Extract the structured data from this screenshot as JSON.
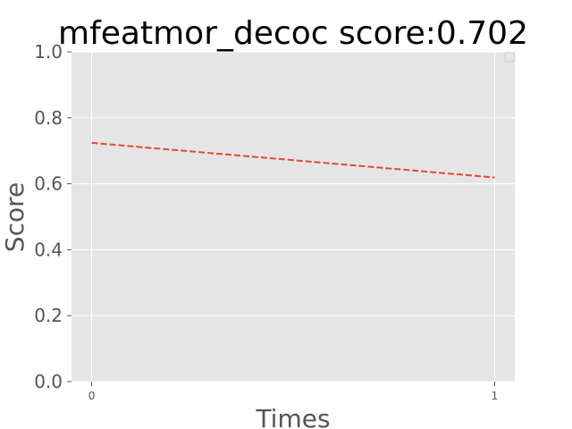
{
  "chart_data": {
    "type": "line",
    "title": "mfeatmor_decoc score:0.702",
    "xlabel": "Times",
    "ylabel": "Score",
    "x": [
      0,
      1
    ],
    "xticks": [
      "0",
      "1"
    ],
    "yticks": [
      "0.0",
      "0.2",
      "0.4",
      "0.6",
      "0.8",
      "1.0"
    ],
    "ylim": [
      0,
      1
    ],
    "xlim": [
      -0.05,
      1.05
    ],
    "grid": true,
    "legend": "top-right",
    "series": [
      {
        "values": [
          0.724,
          0.619
        ],
        "color": "#e24a33",
        "style": "dashed"
      }
    ]
  },
  "colors": {
    "plot_background": "#e5e5e5",
    "grid": "#ffffff",
    "text": "#555555"
  }
}
